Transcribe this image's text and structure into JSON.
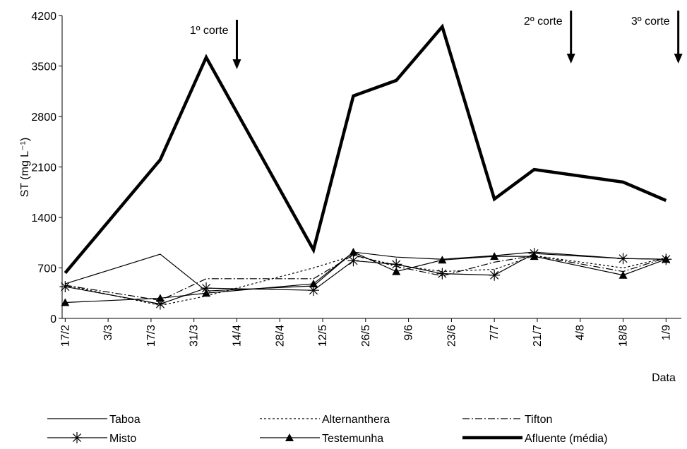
{
  "chart_data": {
    "type": "line",
    "ylabel": "ST (mg L⁻¹)",
    "xlabel": "Data",
    "x": [
      48,
      79,
      94,
      129,
      142,
      156,
      171,
      188,
      201,
      230,
      244
    ],
    "xlim": [
      47,
      249
    ],
    "xticks": [
      {
        "value": 48,
        "label": "17/2"
      },
      {
        "value": 62,
        "label": "3/3"
      },
      {
        "value": 76,
        "label": "17/3"
      },
      {
        "value": 90,
        "label": "31/3"
      },
      {
        "value": 104,
        "label": "14/4"
      },
      {
        "value": 118,
        "label": "28/4"
      },
      {
        "value": 132,
        "label": "12/5"
      },
      {
        "value": 146,
        "label": "26/5"
      },
      {
        "value": 160,
        "label": "9/6"
      },
      {
        "value": 174,
        "label": "23/6"
      },
      {
        "value": 188,
        "label": "7/7"
      },
      {
        "value": 202,
        "label": "21/7"
      },
      {
        "value": 216,
        "label": "4/8"
      },
      {
        "value": 230,
        "label": "18/8"
      },
      {
        "value": 244,
        "label": "1/9"
      }
    ],
    "ylim": [
      0,
      4200
    ],
    "yticks": [
      0,
      700,
      1400,
      2100,
      2800,
      3500,
      4200
    ],
    "annotations": [
      {
        "text": "1º corte",
        "x": 104
      },
      {
        "text": "2º corte",
        "x": 213
      },
      {
        "text": "3º corte",
        "x": 248
      }
    ],
    "series": [
      {
        "name": "Taboa",
        "color": "#000000",
        "values": [
          480,
          890,
          380,
          450,
          920,
          850,
          820,
          870,
          920,
          830,
          820
        ]
      },
      {
        "name": "Alternanthera",
        "color": "#000000",
        "values": [
          460,
          180,
          310,
          700,
          870,
          740,
          650,
          680,
          870,
          700,
          840
        ]
      },
      {
        "name": "Tifton",
        "color": "#000000",
        "values": [
          460,
          250,
          550,
          550,
          880,
          720,
          590,
          780,
          870,
          650,
          840
        ]
      },
      {
        "name": "Misto",
        "color": "#000000",
        "values": [
          440,
          200,
          420,
          390,
          800,
          750,
          620,
          600,
          900,
          830,
          820
        ]
      },
      {
        "name": "Testemunha",
        "color": "#000000",
        "values": [
          220,
          280,
          350,
          480,
          920,
          650,
          810,
          860,
          860,
          600,
          820
        ]
      },
      {
        "name": "Afluente (média)",
        "color": "#000000",
        "values": [
          630,
          2200,
          3620,
          950,
          3085,
          3300,
          4045,
          1655,
          2065,
          1890,
          1635
        ]
      }
    ]
  }
}
